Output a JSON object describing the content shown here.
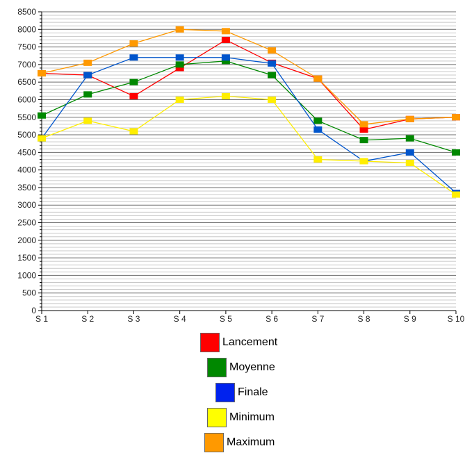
{
  "chart_data": {
    "type": "line",
    "categories": [
      "S 1",
      "S 2",
      "S 3",
      "S 4",
      "S 5",
      "S 6",
      "S 7",
      "S 8",
      "S 9",
      "S 10"
    ],
    "ylim": [
      0,
      8500
    ],
    "yticks": [
      0,
      500,
      1000,
      1500,
      2000,
      2500,
      3000,
      3500,
      4000,
      4500,
      5000,
      5500,
      6000,
      6500,
      7000,
      7500,
      8000,
      8500
    ],
    "grid": true,
    "legend_position": "bottom",
    "series": [
      {
        "name": "Lancement",
        "color": "#ff0000",
        "values": [
          6750,
          6700,
          6100,
          6900,
          7700,
          7050,
          6600,
          5150,
          5450,
          5500
        ]
      },
      {
        "name": "Moyenne",
        "color": "#008800",
        "values": [
          5550,
          6150,
          6500,
          7000,
          7100,
          6700,
          5400,
          4850,
          4900,
          4500
        ]
      },
      {
        "name": "Finale",
        "color": "#0055cc",
        "values": [
          4900,
          6700,
          7200,
          7200,
          7200,
          7030,
          5150,
          4250,
          4500,
          3350
        ]
      },
      {
        "name": "Minimum",
        "color": "#ffee00",
        "values": [
          4900,
          5400,
          5100,
          6000,
          6100,
          6000,
          4300,
          4250,
          4200,
          3300
        ]
      },
      {
        "name": "Maximum",
        "color": "#ff9900",
        "values": [
          6750,
          7050,
          7600,
          8000,
          7950,
          7400,
          6600,
          5300,
          5450,
          5500
        ]
      }
    ]
  },
  "legend": {
    "items": [
      {
        "label": "Lancement",
        "color": "#ff0000"
      },
      {
        "label": "Moyenne",
        "color": "#008800"
      },
      {
        "label": "Finale",
        "color": "#0022ee"
      },
      {
        "label": "Minimum",
        "color": "#ffff00"
      },
      {
        "label": "Maximum",
        "color": "#ff9900"
      }
    ]
  }
}
